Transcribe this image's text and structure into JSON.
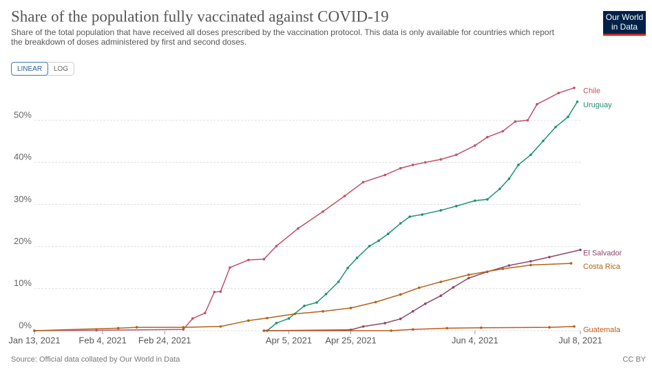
{
  "logo": {
    "line1": "Our World",
    "line2": "in Data"
  },
  "controls": {
    "linear": "LINEAR",
    "log": "LOG"
  },
  "source": "Source: Official data collated by Our World in Data",
  "license": "CC BY",
  "chart_data": {
    "type": "line",
    "title": "Share of the population fully vaccinated against COVID-19",
    "subtitle": "Share of the total population that have received all doses prescribed by the vaccination protocol. This data is only available for countries which report the breakdown of doses administered by first and second doses.",
    "xlim": [
      "2021-01-13",
      "2021-07-08"
    ],
    "xticks": [
      {
        "value": "2021-01-13",
        "label": "Jan 13, 2021"
      },
      {
        "value": "2021-02-04",
        "label": "Feb 4, 2021"
      },
      {
        "value": "2021-02-24",
        "label": "Feb 24, 2021"
      },
      {
        "value": "2021-04-05",
        "label": "Apr 5, 2021"
      },
      {
        "value": "2021-04-25",
        "label": "Apr 25, 2021"
      },
      {
        "value": "2021-06-04",
        "label": "Jun 4, 2021"
      },
      {
        "value": "2021-07-08",
        "label": "Jul 8, 2021"
      }
    ],
    "ylim": [
      0,
      58
    ],
    "yticks": [
      {
        "value": 0,
        "label": "0%"
      },
      {
        "value": 10,
        "label": "10%"
      },
      {
        "value": 20,
        "label": "20%"
      },
      {
        "value": 30,
        "label": "30%"
      },
      {
        "value": 40,
        "label": "40%"
      },
      {
        "value": 50,
        "label": "50%"
      }
    ],
    "grid": true,
    "series": [
      {
        "name": "Chile",
        "color": "#c15065",
        "x": [
          "2021-01-13",
          "2021-02-02",
          "2021-03-02",
          "2021-03-05",
          "2021-03-09",
          "2021-03-12",
          "2021-03-14",
          "2021-03-17",
          "2021-03-23",
          "2021-03-28",
          "2021-04-01",
          "2021-04-08",
          "2021-04-16",
          "2021-04-23",
          "2021-04-29",
          "2021-05-06",
          "2021-05-11",
          "2021-05-15",
          "2021-05-19",
          "2021-05-24",
          "2021-05-29",
          "2021-06-04",
          "2021-06-08",
          "2021-06-13",
          "2021-06-17",
          "2021-06-21",
          "2021-06-24",
          "2021-07-01",
          "2021-07-06"
        ],
        "values": [
          0,
          0.1,
          0.3,
          2.9,
          4.2,
          9.2,
          9.3,
          15,
          16.8,
          17,
          20.1,
          24.3,
          28.3,
          32,
          35.3,
          37,
          38.6,
          39.4,
          40,
          40.7,
          41.8,
          44,
          46,
          47.4,
          49.7,
          50,
          53.8,
          56.5,
          57.7
        ]
      },
      {
        "name": "Uruguay",
        "color": "#18926f",
        "x": [
          "2021-03-29",
          "2021-04-01",
          "2021-04-05",
          "2021-04-10",
          "2021-04-14",
          "2021-04-17",
          "2021-04-21",
          "2021-04-24",
          "2021-04-27",
          "2021-05-01",
          "2021-05-04",
          "2021-05-07",
          "2021-05-11",
          "2021-05-14",
          "2021-05-18",
          "2021-05-24",
          "2021-05-29",
          "2021-06-04",
          "2021-06-08",
          "2021-06-12",
          "2021-06-15",
          "2021-06-18",
          "2021-06-22",
          "2021-06-26",
          "2021-06-30",
          "2021-07-04",
          "2021-07-07"
        ],
        "values": [
          0,
          1.8,
          2.9,
          5.9,
          6.7,
          8.7,
          11.6,
          14.9,
          17.3,
          20.1,
          21.4,
          23,
          25.5,
          27.1,
          27.6,
          28.6,
          29.6,
          30.9,
          31.2,
          33.7,
          36.1,
          39.4,
          41.8,
          45.1,
          48.4,
          50.8,
          54.4
        ]
      },
      {
        "name": "El Salvador",
        "color": "#8c4569",
        "x": [
          "2021-03-28",
          "2021-04-25",
          "2021-04-29",
          "2021-05-06",
          "2021-05-11",
          "2021-05-15",
          "2021-05-19",
          "2021-05-24",
          "2021-05-28",
          "2021-06-02",
          "2021-06-08",
          "2021-06-15",
          "2021-06-22",
          "2021-06-28",
          "2021-07-08"
        ],
        "values": [
          0,
          0.2,
          1.0,
          1.8,
          2.8,
          4.6,
          6.4,
          8.3,
          10.3,
          12.5,
          14,
          15.5,
          16.5,
          17.5,
          19.2
        ]
      },
      {
        "name": "Costa Rica",
        "color": "#b16214",
        "x": [
          "2021-01-13",
          "2021-02-09",
          "2021-02-15",
          "2021-03-02",
          "2021-03-14",
          "2021-03-23",
          "2021-03-29",
          "2021-04-07",
          "2021-04-16",
          "2021-04-25",
          "2021-05-03",
          "2021-05-11",
          "2021-05-17",
          "2021-05-24",
          "2021-06-02",
          "2021-06-13",
          "2021-06-22",
          "2021-07-05"
        ],
        "values": [
          0,
          0.6,
          0.8,
          0.8,
          1.0,
          2.4,
          3.0,
          4.0,
          4.6,
          5.4,
          6.8,
          8.6,
          10.2,
          11.6,
          13.3,
          14.7,
          15.6,
          16.0
        ]
      },
      {
        "name": "Guatemala",
        "color": "#c05917",
        "x": [
          "2021-03-28",
          "2021-05-08",
          "2021-05-15",
          "2021-05-26",
          "2021-06-06",
          "2021-06-28",
          "2021-07-06"
        ],
        "values": [
          0,
          0,
          0.3,
          0.6,
          0.7,
          0.8,
          1.0
        ]
      }
    ]
  }
}
